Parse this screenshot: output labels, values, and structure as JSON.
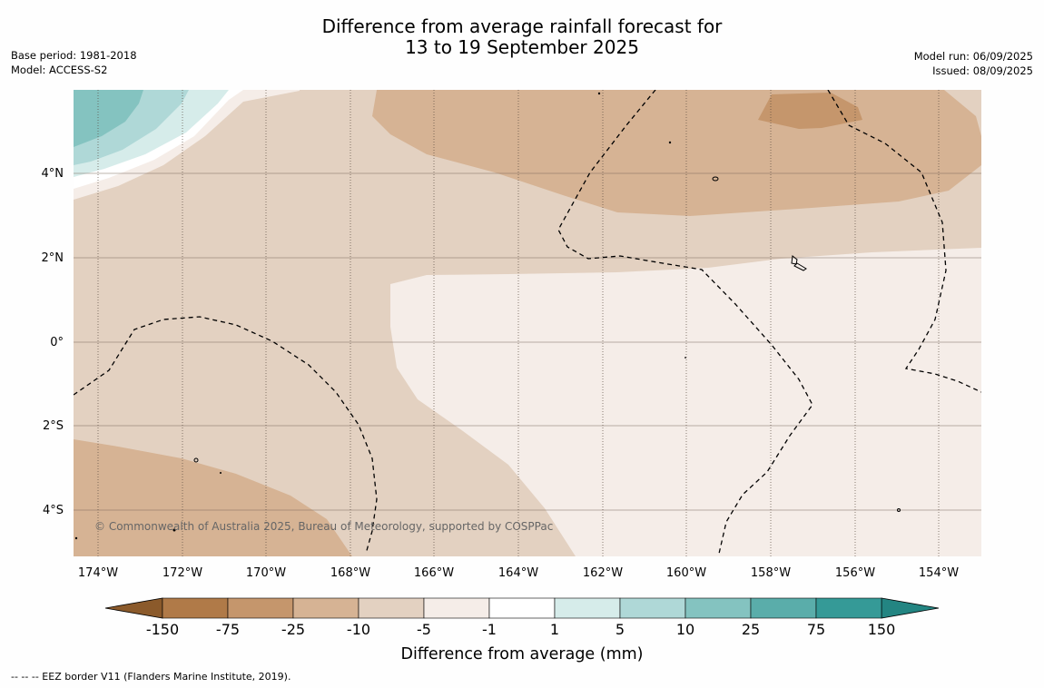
{
  "title": {
    "line1": "Difference from average rainfall forecast for",
    "line2": "13 to 19 September 2025"
  },
  "meta_left": {
    "base_period": "Base period: 1981-2018",
    "model": "Model: ACCESS-S2"
  },
  "meta_right": {
    "model_run": "Model run: 06/09/2025",
    "issued": "Issued: 08/09/2025"
  },
  "map": {
    "longitude_labels": [
      "174°W",
      "172°W",
      "170°W",
      "168°W",
      "166°W",
      "164°W",
      "162°W",
      "160°W",
      "158°W",
      "156°W",
      "154°W"
    ],
    "latitude_labels": [
      "4°N",
      "2°N",
      "0°",
      "2°S",
      "4°S"
    ],
    "copyright": "© Commonwealth of Australia 2025, Bureau of Meteorology, supported by COSPPac",
    "gridlines": true
  },
  "colorbar": {
    "title": "Difference from average (mm)",
    "ticks": [
      "-150",
      "-75",
      "-25",
      "-10",
      "-5",
      "-1",
      "1",
      "5",
      "10",
      "25",
      "75",
      "150"
    ],
    "colors": [
      "#8b5a2b",
      "#b07a48",
      "#c5966c",
      "#d6b394",
      "#e3d1c1",
      "#f5ede8",
      "#ffffff",
      "#d6ecea",
      "#afd8d7",
      "#84c3c0",
      "#5aadaa",
      "#359a97",
      "#238582"
    ]
  },
  "footnote": "--  --  -- EEZ border V11 (Flanders Marine Institute, 2019)."
}
